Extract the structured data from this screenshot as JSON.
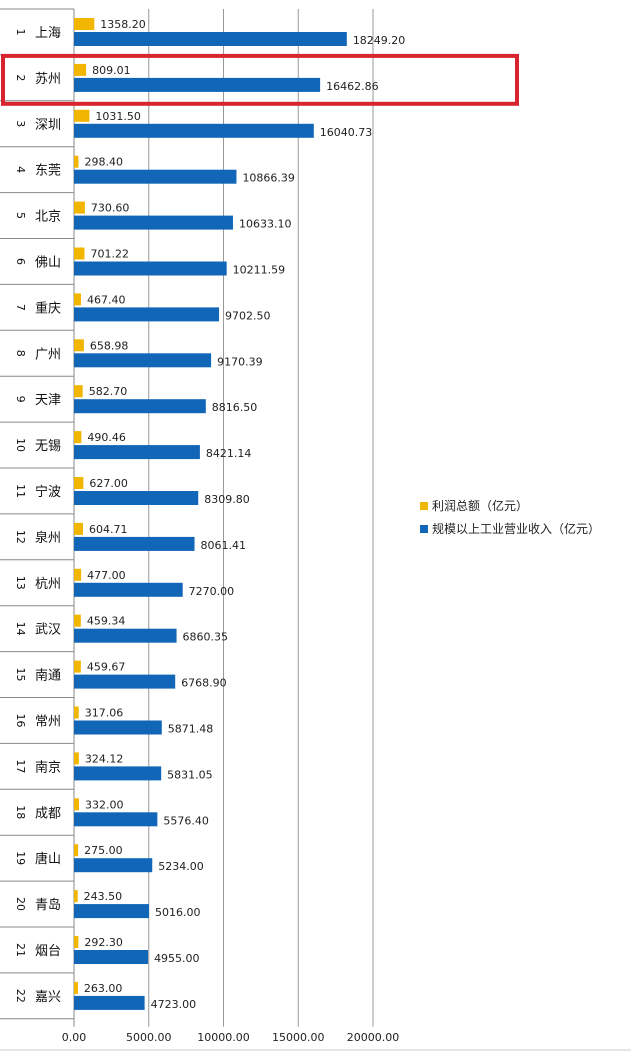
{
  "chart_data": {
    "type": "bar",
    "orientation": "horizontal",
    "categories": [
      "上海",
      "苏州",
      "深圳",
      "东莞",
      "北京",
      "佛山",
      "重庆",
      "广州",
      "天津",
      "无锡",
      "宁波",
      "泉州",
      "杭州",
      "武汉",
      "南通",
      "常州",
      "南京",
      "成都",
      "唐山",
      "青岛",
      "烟台",
      "嘉兴"
    ],
    "ranks": [
      "1",
      "2",
      "3",
      "4",
      "5",
      "6",
      "7",
      "8",
      "9",
      "10",
      "11",
      "12",
      "13",
      "14",
      "15",
      "16",
      "17",
      "18",
      "19",
      "20",
      "21",
      "22"
    ],
    "series": [
      {
        "name": "利润总额（亿元）",
        "color": "#f2b600",
        "values": [
          1358.2,
          809.01,
          1031.5,
          298.4,
          730.6,
          701.22,
          467.4,
          658.98,
          582.7,
          490.46,
          627.0,
          604.71,
          477.0,
          459.34,
          459.67,
          317.06,
          324.12,
          332.0,
          275.0,
          243.5,
          292.3,
          263.0
        ],
        "labels": [
          "1358.20",
          "809.01",
          "1031.50",
          "298.40",
          "730.60",
          "701.22",
          "467.40",
          "658.98",
          "582.70",
          "490.46",
          "627.00",
          "604.71",
          "477.00",
          "459.34",
          "459.67",
          "317.06",
          "324.12",
          "332.00",
          "275.00",
          "243.50",
          "292.30",
          "263.00"
        ]
      },
      {
        "name": "规模以上工业营业收入（亿元）",
        "color": "#1166b8",
        "values": [
          18249.2,
          16462.86,
          16040.73,
          10866.39,
          10633.1,
          10211.59,
          9702.5,
          9170.39,
          8816.5,
          8421.14,
          8309.8,
          8061.41,
          7270.0,
          6860.35,
          6768.9,
          5871.48,
          5831.05,
          5576.4,
          5234.0,
          5016.0,
          4955.0,
          4723.0
        ],
        "labels": [
          "18249.20",
          "16462.86",
          "16040.73",
          "10866.39",
          "10633.10",
          "10211.59",
          "9702.50",
          "9170.39",
          "8816.50",
          "8421.14",
          "8309.80",
          "8061.41",
          "7270.00",
          "6860.35",
          "6768.90",
          "5871.48",
          "5831.05",
          "5576.40",
          "5234.00",
          "5016.00",
          "4955.00",
          "4723.00"
        ]
      }
    ],
    "xlim": [
      0,
      20000
    ],
    "xticks": [
      "0.00",
      "5000.00",
      "10000.00",
      "15000.00",
      "20000.00"
    ],
    "grid": "vertical",
    "legend_position": "right",
    "highlight": {
      "category": "苏州",
      "color": "#d9232e"
    }
  }
}
